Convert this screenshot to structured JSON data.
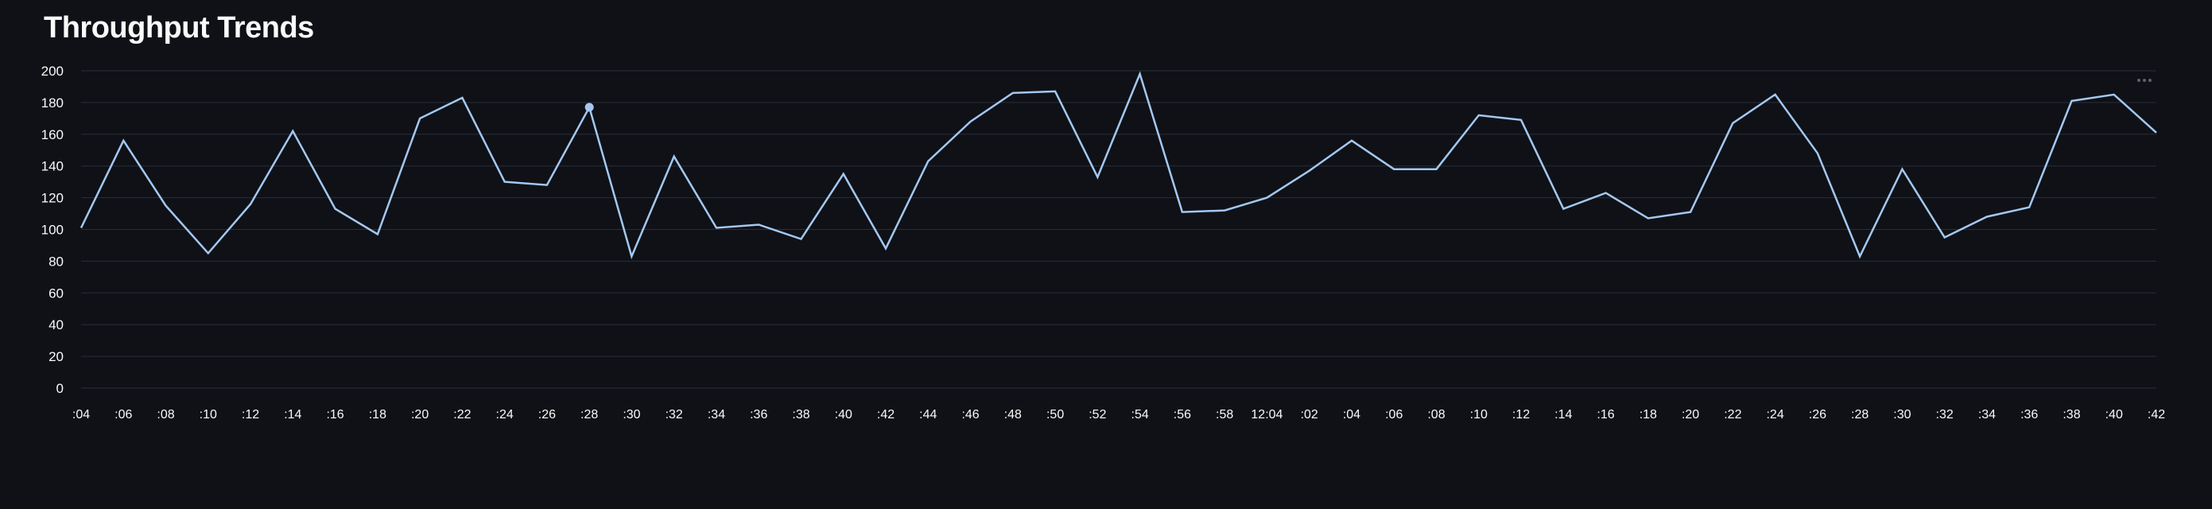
{
  "page": {
    "title": "Throughput Trends",
    "menu_icon": "more-horizontal-icon"
  },
  "colors": {
    "background": "#0f1117",
    "gridline": "#2a2e38",
    "line": "#a3c8f0",
    "text": "#fafafa"
  },
  "chart_data": {
    "type": "line",
    "title": "Throughput Trends",
    "xlabel": "",
    "ylabel": "",
    "ylim": [
      0,
      200
    ],
    "yticks": [
      0,
      20,
      40,
      60,
      80,
      100,
      120,
      140,
      160,
      180,
      200
    ],
    "grid": true,
    "x": [
      ":04",
      ":06",
      ":08",
      ":10",
      ":12",
      ":14",
      ":16",
      ":18",
      ":20",
      ":22",
      ":24",
      ":26",
      ":28",
      ":30",
      ":32",
      ":34",
      ":36",
      ":38",
      ":40",
      ":42",
      ":44",
      ":46",
      ":48",
      ":50",
      ":52",
      ":54",
      ":56",
      ":58",
      "12:04",
      ":02",
      ":04",
      ":06",
      ":08",
      ":10",
      ":12",
      ":14",
      ":16",
      ":18",
      ":20",
      ":22",
      ":24",
      ":26",
      ":28",
      ":30",
      ":32",
      ":34",
      ":36",
      ":38",
      ":40",
      ":42"
    ],
    "xticks": [
      ":04",
      ":06",
      ":08",
      ":10",
      ":12",
      ":14",
      ":16",
      ":18",
      ":20",
      ":22",
      ":24",
      ":26",
      ":28",
      ":30",
      ":32",
      ":34",
      ":36",
      ":38",
      ":40",
      ":42",
      ":44",
      ":46",
      ":48",
      ":50",
      ":52",
      ":54",
      ":56",
      ":58",
      "12:04",
      ":02",
      ":04",
      ":06",
      ":08",
      ":10",
      ":12",
      ":14",
      ":16",
      ":18",
      ":20",
      ":22",
      ":24",
      ":26",
      ":28",
      ":30",
      ":32",
      ":34",
      ":36",
      ":38",
      ":40",
      ":42"
    ],
    "series": [
      {
        "values": [
          101,
          156,
          115,
          85,
          116,
          162,
          113,
          97,
          170,
          183,
          130,
          128,
          177,
          83,
          146,
          101,
          103,
          94,
          135,
          88,
          143,
          168,
          186,
          187,
          133,
          198,
          111,
          112,
          120,
          137,
          156,
          138,
          138,
          172,
          169,
          113,
          123,
          107,
          111,
          167,
          185,
          148,
          83,
          138,
          95,
          108,
          114,
          181,
          185,
          161
        ],
        "highlighted_index": 12
      }
    ]
  }
}
